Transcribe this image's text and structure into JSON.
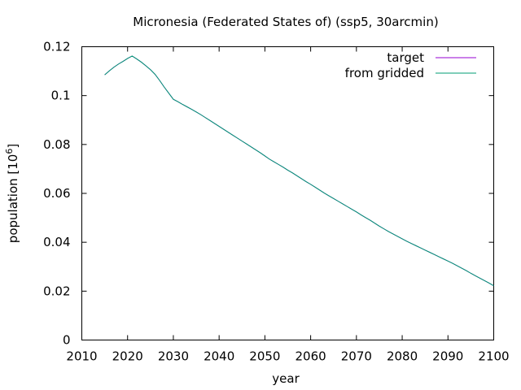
{
  "chart_data": {
    "type": "line",
    "title": "Micronesia (Federated States of) (ssp5, 30arcmin)",
    "xlabel": "year",
    "ylabel": "population [10",
    "ylabel_sup": "6",
    "ylabel_close": "]",
    "xlim": [
      2010,
      2100
    ],
    "ylim": [
      0,
      0.12
    ],
    "x_ticks": [
      2010,
      2020,
      2030,
      2040,
      2050,
      2060,
      2070,
      2080,
      2090,
      2100
    ],
    "x_tick_labels": [
      "2010",
      "2020",
      "2030",
      "2040",
      "2050",
      "2060",
      "2070",
      "2080",
      "2090",
      "2100"
    ],
    "y_ticks": [
      0,
      0.02,
      0.04,
      0.06,
      0.08,
      0.1,
      0.12
    ],
    "y_tick_labels": [
      "0",
      "0.02",
      "0.04",
      "0.06",
      "0.08",
      "0.1",
      "0.12"
    ],
    "legend_position": "top-right",
    "grid": false,
    "series": [
      {
        "name": "target",
        "color": "#9400d3",
        "x": [
          2015,
          2016,
          2017,
          2018,
          2019,
          2020,
          2021,
          2022,
          2023,
          2024,
          2025,
          2026,
          2027,
          2028,
          2029,
          2030,
          2031,
          2032,
          2033,
          2034,
          2035,
          2036,
          2037,
          2038,
          2039,
          2040,
          2041,
          2042,
          2043,
          2044,
          2045,
          2046,
          2047,
          2048,
          2049,
          2050,
          2051,
          2052,
          2053,
          2054,
          2055,
          2056,
          2057,
          2058,
          2059,
          2060,
          2061,
          2062,
          2063,
          2064,
          2065,
          2066,
          2067,
          2068,
          2069,
          2070,
          2071,
          2072,
          2073,
          2074,
          2075,
          2076,
          2077,
          2078,
          2079,
          2080,
          2081,
          2082,
          2083,
          2084,
          2085,
          2086,
          2087,
          2088,
          2089,
          2090,
          2091,
          2092,
          2093,
          2094,
          2095,
          2096,
          2097,
          2098,
          2099,
          2100
        ],
        "values": [
          0.1085,
          0.1101,
          0.1116,
          0.1129,
          0.114,
          0.1152,
          0.1162,
          0.115,
          0.1137,
          0.1122,
          0.1106,
          0.1087,
          0.1062,
          0.1035,
          0.101,
          0.0985,
          0.0975,
          0.0964,
          0.0954,
          0.0944,
          0.0933,
          0.0922,
          0.091,
          0.0898,
          0.0886,
          0.0874,
          0.0862,
          0.085,
          0.0838,
          0.0826,
          0.0814,
          0.0802,
          0.079,
          0.0778,
          0.0766,
          0.0753,
          0.074,
          0.0729,
          0.0718,
          0.0707,
          0.0695,
          0.0684,
          0.0672,
          0.066,
          0.0648,
          0.0637,
          0.0625,
          0.0613,
          0.0601,
          0.059,
          0.0579,
          0.0568,
          0.0557,
          0.0546,
          0.0535,
          0.0524,
          0.0512,
          0.0501,
          0.049,
          0.0478,
          0.0466,
          0.0455,
          0.0444,
          0.0434,
          0.0424,
          0.0414,
          0.0404,
          0.0395,
          0.0386,
          0.0377,
          0.0368,
          0.0359,
          0.035,
          0.0341,
          0.0332,
          0.0323,
          0.0314,
          0.0304,
          0.0294,
          0.0284,
          0.0273,
          0.0263,
          0.0253,
          0.0243,
          0.0233,
          0.0222
        ]
      },
      {
        "name": "from gridded",
        "color": "#009e73",
        "x": [
          2015,
          2016,
          2017,
          2018,
          2019,
          2020,
          2021,
          2022,
          2023,
          2024,
          2025,
          2026,
          2027,
          2028,
          2029,
          2030,
          2031,
          2032,
          2033,
          2034,
          2035,
          2036,
          2037,
          2038,
          2039,
          2040,
          2041,
          2042,
          2043,
          2044,
          2045,
          2046,
          2047,
          2048,
          2049,
          2050,
          2051,
          2052,
          2053,
          2054,
          2055,
          2056,
          2057,
          2058,
          2059,
          2060,
          2061,
          2062,
          2063,
          2064,
          2065,
          2066,
          2067,
          2068,
          2069,
          2070,
          2071,
          2072,
          2073,
          2074,
          2075,
          2076,
          2077,
          2078,
          2079,
          2080,
          2081,
          2082,
          2083,
          2084,
          2085,
          2086,
          2087,
          2088,
          2089,
          2090,
          2091,
          2092,
          2093,
          2094,
          2095,
          2096,
          2097,
          2098,
          2099,
          2100
        ],
        "values": [
          0.1085,
          0.1101,
          0.1116,
          0.1129,
          0.114,
          0.1152,
          0.1162,
          0.115,
          0.1137,
          0.1122,
          0.1106,
          0.1087,
          0.1062,
          0.1035,
          0.101,
          0.0985,
          0.0975,
          0.0964,
          0.0954,
          0.0944,
          0.0933,
          0.0922,
          0.091,
          0.0898,
          0.0886,
          0.0874,
          0.0862,
          0.085,
          0.0838,
          0.0826,
          0.0814,
          0.0802,
          0.079,
          0.0778,
          0.0766,
          0.0753,
          0.074,
          0.0729,
          0.0718,
          0.0707,
          0.0695,
          0.0684,
          0.0672,
          0.066,
          0.0648,
          0.0637,
          0.0625,
          0.0613,
          0.0601,
          0.059,
          0.0579,
          0.0568,
          0.0557,
          0.0546,
          0.0535,
          0.0524,
          0.0512,
          0.0501,
          0.049,
          0.0478,
          0.0466,
          0.0455,
          0.0444,
          0.0434,
          0.0424,
          0.0414,
          0.0404,
          0.0395,
          0.0386,
          0.0377,
          0.0368,
          0.0359,
          0.035,
          0.0341,
          0.0332,
          0.0323,
          0.0314,
          0.0304,
          0.0294,
          0.0284,
          0.0273,
          0.0263,
          0.0253,
          0.0243,
          0.0233,
          0.0222
        ]
      }
    ]
  }
}
